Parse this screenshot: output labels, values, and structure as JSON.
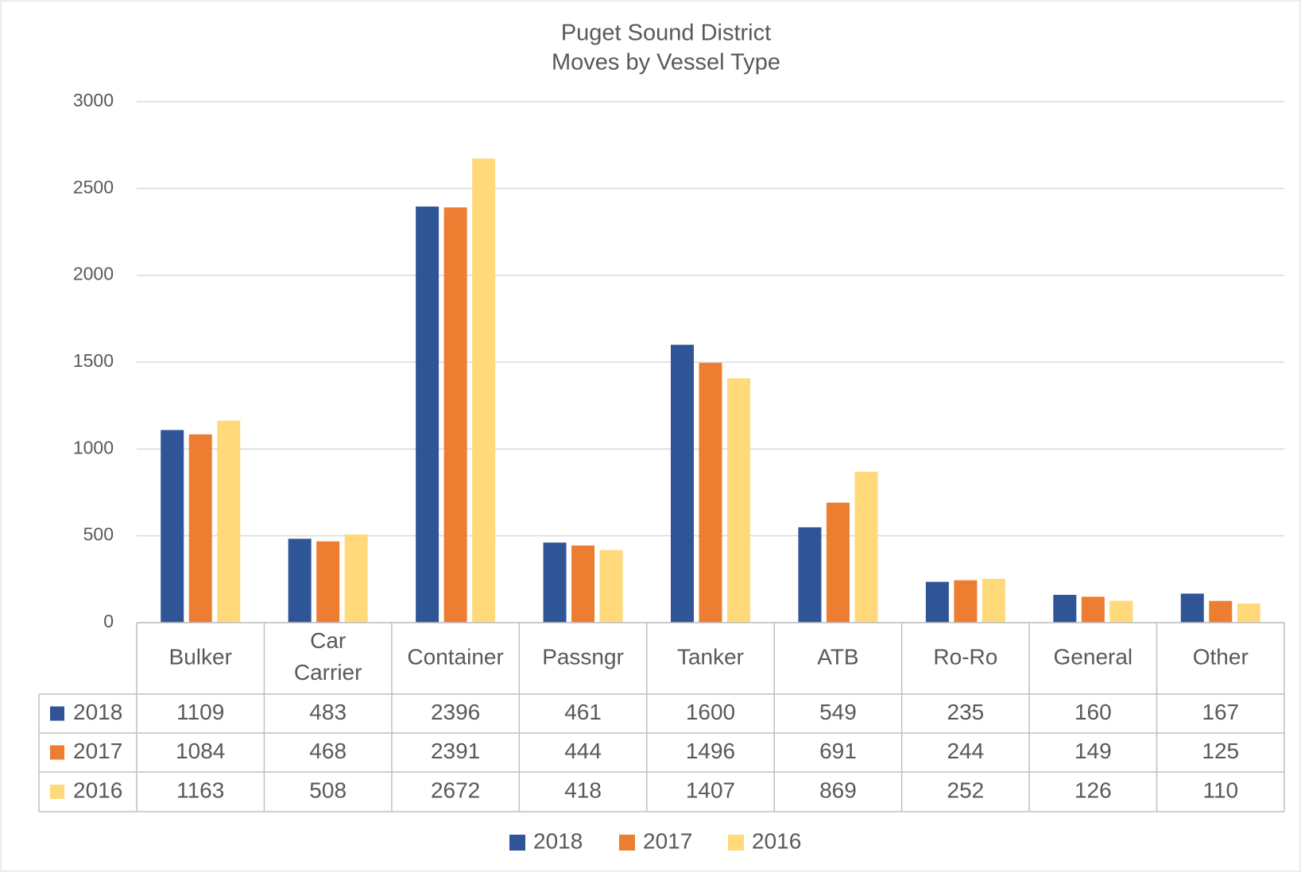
{
  "chart_data": {
    "type": "bar",
    "title": [
      "Puget Sound District",
      "Moves by Vessel Type"
    ],
    "categories": [
      "Bulker",
      "Car Carrier",
      "Container",
      "Passngr",
      "Tanker",
      "ATB",
      "Ro-Ro",
      "General",
      "Other"
    ],
    "series": [
      {
        "name": "2018",
        "color": "#2f5597",
        "values": [
          1109,
          483,
          2396,
          461,
          1600,
          549,
          235,
          160,
          167
        ]
      },
      {
        "name": "2017",
        "color": "#ed7d31",
        "values": [
          1084,
          468,
          2391,
          444,
          1496,
          691,
          244,
          149,
          125
        ]
      },
      {
        "name": "2016",
        "color": "#ffd97a",
        "values": [
          1163,
          508,
          2672,
          418,
          1407,
          869,
          252,
          126,
          110
        ]
      }
    ],
    "ylim": [
      0,
      3000
    ],
    "yticks": [
      0,
      500,
      1000,
      1500,
      2000,
      2500,
      3000
    ],
    "grid": true,
    "legend": "bottom",
    "data_table": true
  }
}
